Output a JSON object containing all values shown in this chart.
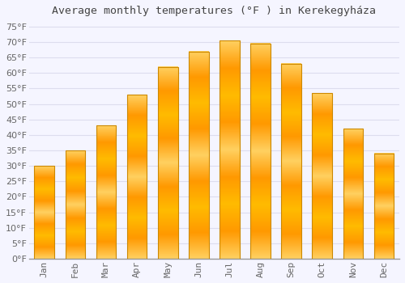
{
  "title": "Average monthly temperatures (°F ) in Kerekegyháza",
  "months": [
    "Jan",
    "Feb",
    "Mar",
    "Apr",
    "May",
    "Jun",
    "Jul",
    "Aug",
    "Sep",
    "Oct",
    "Nov",
    "Dec"
  ],
  "values": [
    30,
    35,
    43,
    53,
    62,
    67,
    70.5,
    69.5,
    63,
    53.5,
    42,
    34
  ],
  "bar_color_main": "#FFAA00",
  "bar_color_edge": "#CC8800",
  "background_color": "#F5F5FF",
  "grid_color": "#DDDDEE",
  "ylim": [
    0,
    77
  ],
  "yticks": [
    0,
    5,
    10,
    15,
    20,
    25,
    30,
    35,
    40,
    45,
    50,
    55,
    60,
    65,
    70,
    75
  ],
  "title_fontsize": 9.5,
  "tick_fontsize": 8,
  "title_color": "#444444",
  "tick_color": "#666666",
  "bar_width": 0.65
}
